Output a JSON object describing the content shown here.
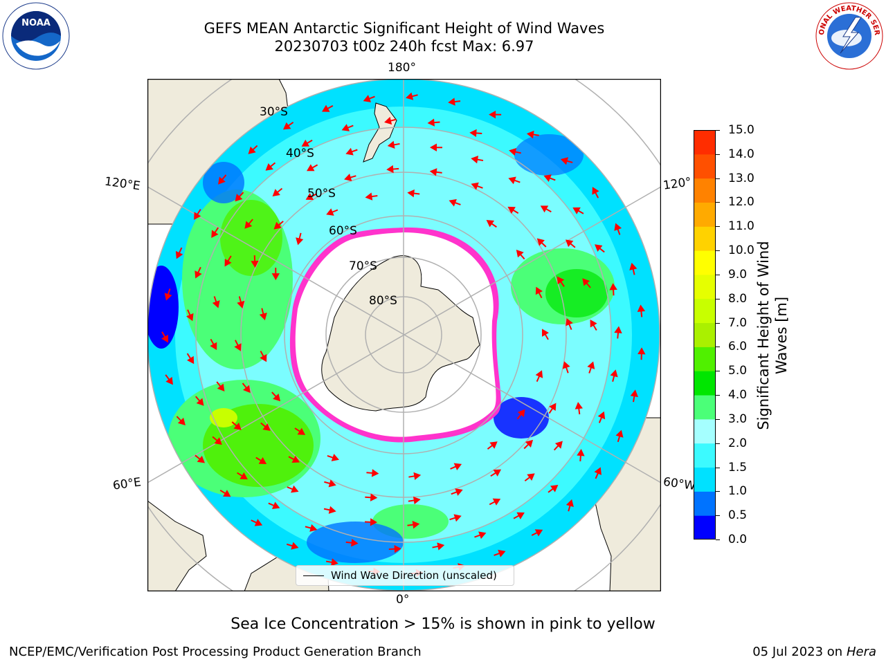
{
  "title": {
    "line1": "GEFS MEAN Antarctic Significant Height of Wind Waves",
    "line2": "20230703 t00z 240h fcst   Max: 6.97"
  },
  "map": {
    "labels": {
      "lon_180": "180°",
      "lon_0": "0°",
      "lon_120e": "120°E",
      "lon_60e": "60°E",
      "lon_120w": "120°",
      "lon_60w": "60°W",
      "lat_30s": "30°S",
      "lat_40s": "40°S",
      "lat_50s": "50°S",
      "lat_60s": "60°S",
      "lat_70s": "70°S",
      "lat_80s": "80°S"
    },
    "legend": "Wind Wave Direction (unscaled)"
  },
  "colorbar": {
    "label_line1": "Significant Height of Wind",
    "label_line2": "Waves [m]",
    "ticks": [
      "0.0",
      "0.5",
      "1.0",
      "1.5",
      "2.0",
      "3.0",
      "4.0",
      "5.0",
      "6.0",
      "7.0",
      "8.0",
      "9.0",
      "10.0",
      "11.0",
      "12.0",
      "13.0",
      "14.0",
      "15.0"
    ],
    "colors": [
      "#0000ff",
      "#0073ff",
      "#00e1ff",
      "#3cfaff",
      "#a5ffff",
      "#4bff78",
      "#00e600",
      "#50f000",
      "#aaf000",
      "#c8ff00",
      "#e6ff00",
      "#ffff00",
      "#ffd200",
      "#ffaa00",
      "#ff8200",
      "#ff5000",
      "#ff2d00",
      "#ff0000"
    ]
  },
  "note": "Sea Ice Concentration > 15% is shown in pink to yellow",
  "footer": {
    "left": "NCEP/EMC/Verification Post Processing Product Generation Branch",
    "right_date": "05 Jul 2023 on ",
    "right_host": "Hera"
  },
  "logos": {
    "left": "NOAA",
    "right": "NATIONAL WEATHER SERVICE"
  },
  "colors": {
    "land": "#efebdc",
    "ocean_low": "#00e1ff",
    "ocean_mid": "#a5ffff",
    "arrow": "#ff0000",
    "sea_ice": "#ff33cc",
    "grid": "#b0b0b0"
  }
}
